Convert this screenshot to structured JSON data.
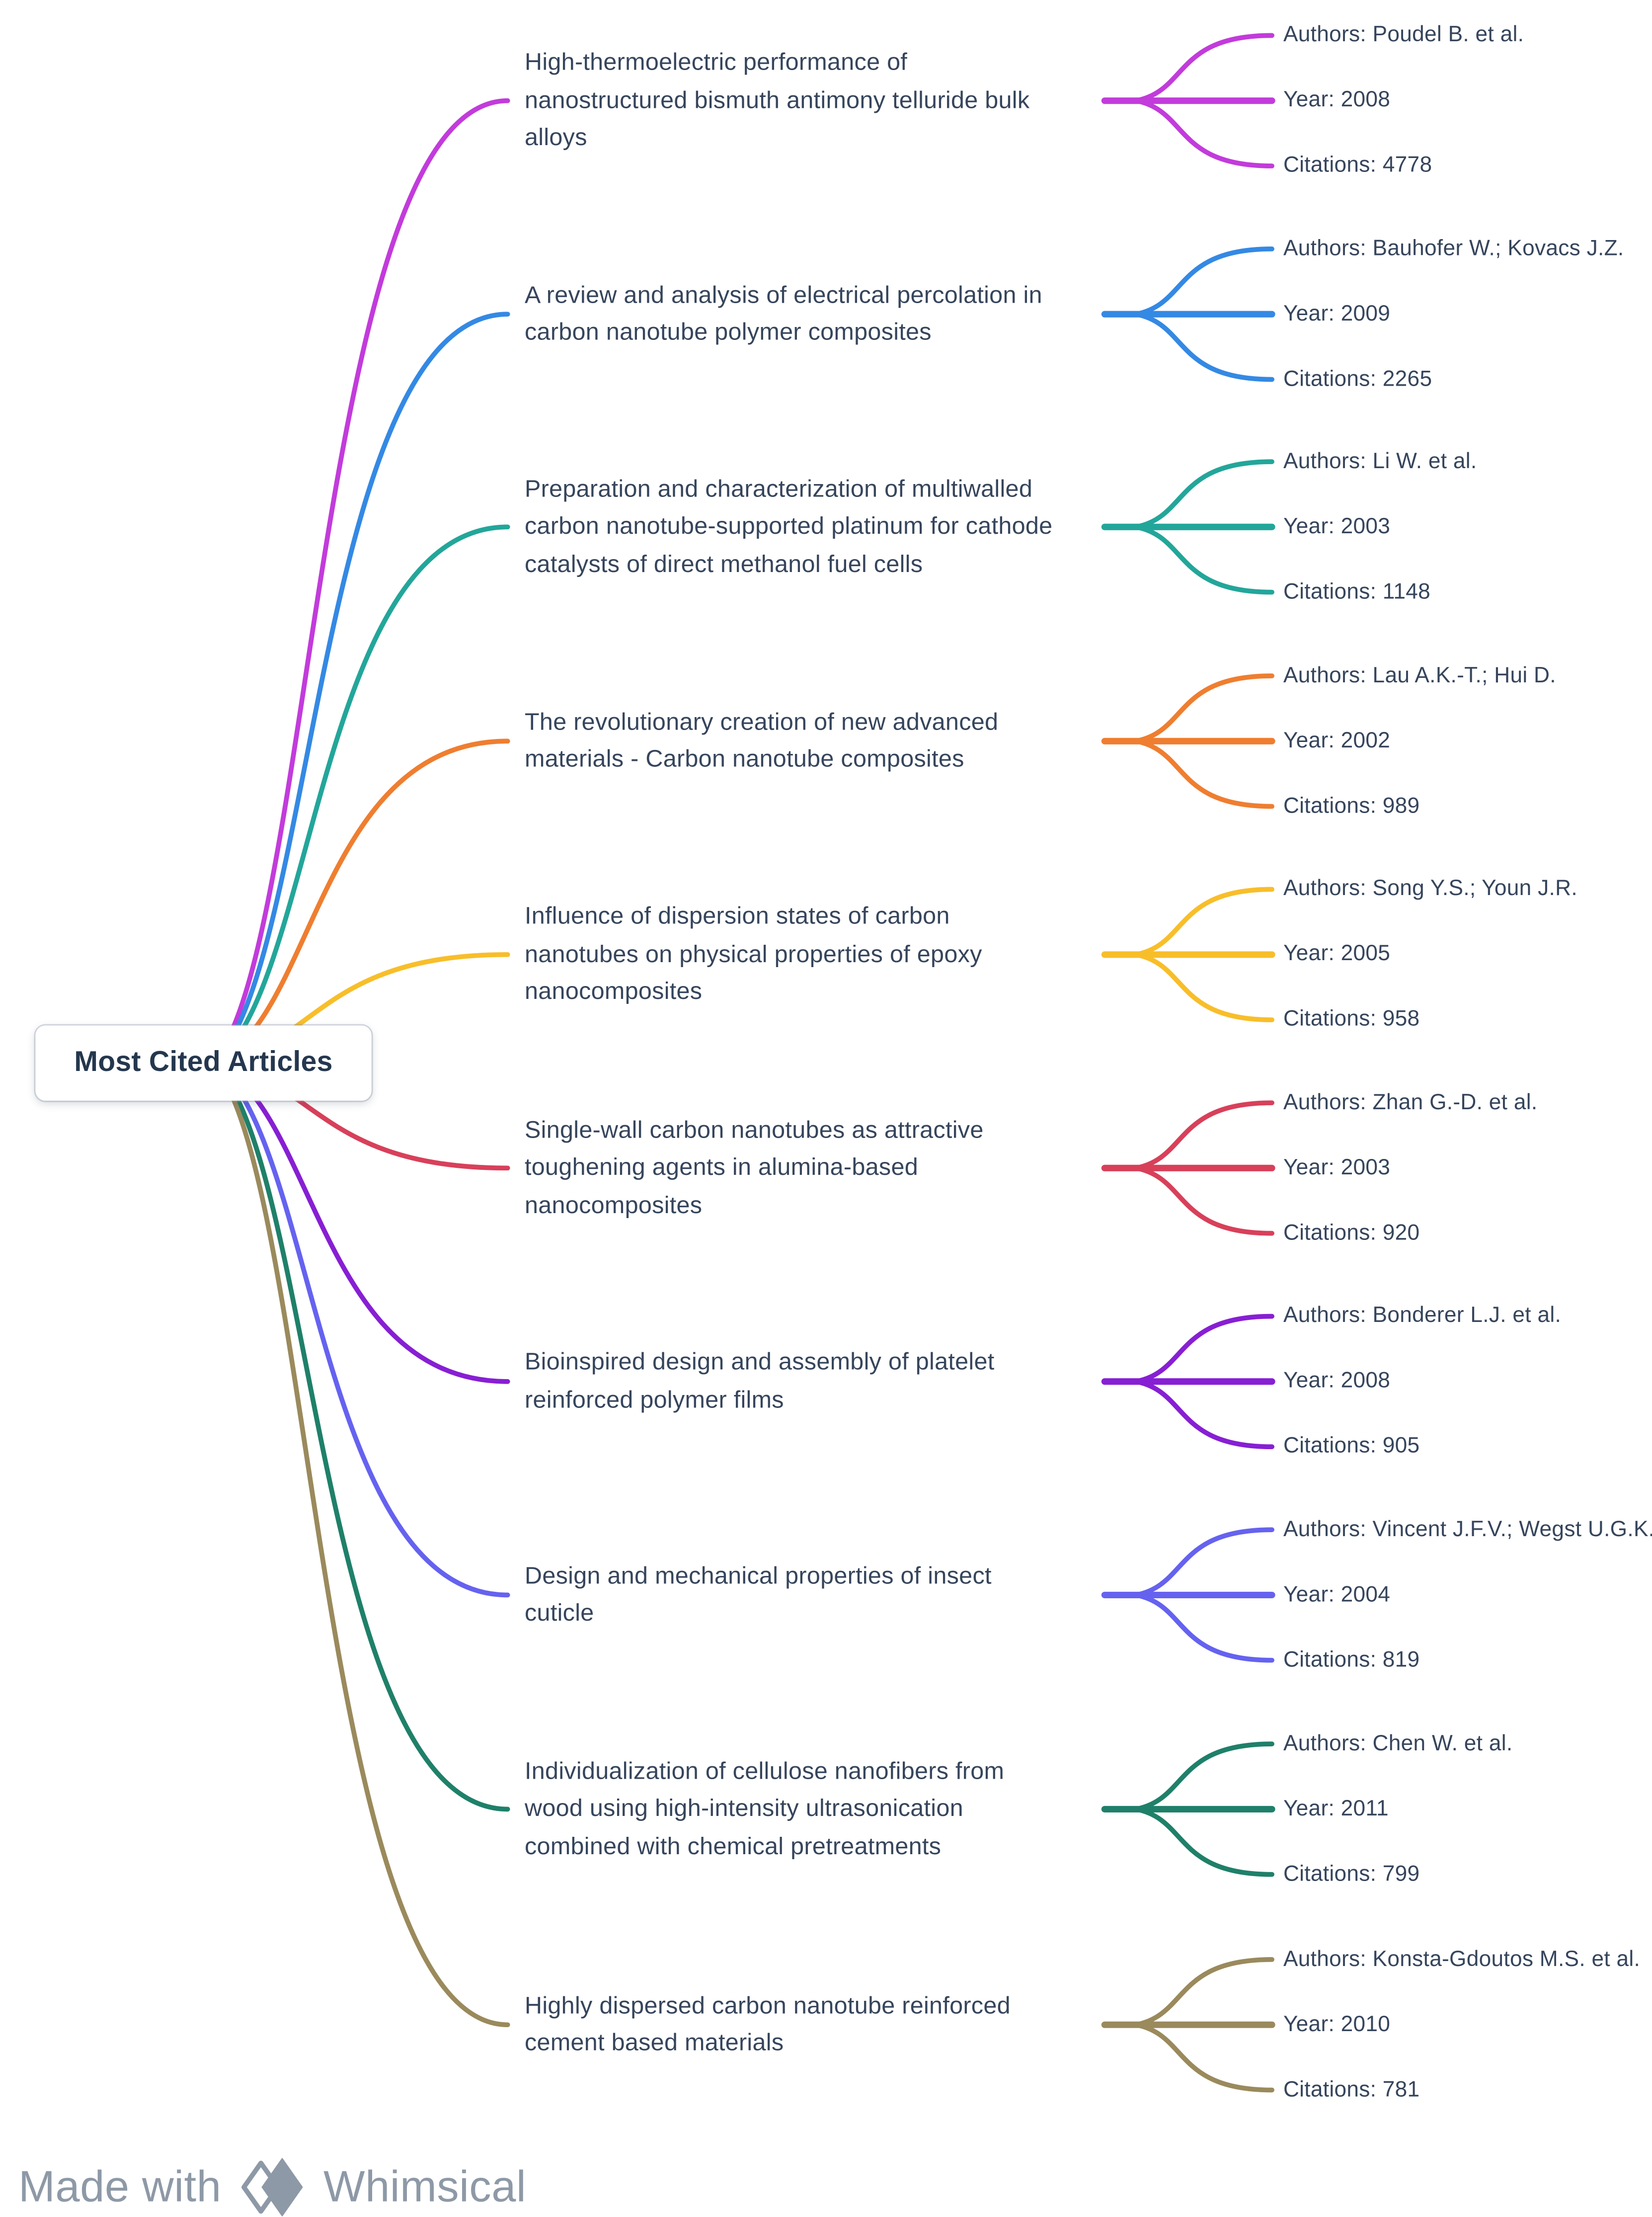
{
  "root": {
    "label": "Most Cited Articles"
  },
  "branches": [
    {
      "title": "High-thermoelectric performance of\nnanostructured bismuth antimony telluride bulk\nalloys",
      "authors": "Authors: Poudel B. et al.",
      "year": "Year: 2008",
      "citations": "Citations: 4778",
      "color": "#C23BDB"
    },
    {
      "title": "A review and analysis of electrical percolation in\ncarbon nanotube polymer composites",
      "authors": "Authors: Bauhofer W.; Kovacs J.Z.",
      "year": "Year: 2009",
      "citations": "Citations: 2265",
      "color": "#3489E4"
    },
    {
      "title": "Preparation and characterization of multiwalled\ncarbon nanotube-supported platinum for cathode\ncatalysts of direct methanol fuel cells",
      "authors": "Authors: Li W. et al.",
      "year": "Year: 2003",
      "citations": "Citations: 1148",
      "color": "#23A69A"
    },
    {
      "title": "The revolutionary creation of new advanced\nmaterials - Carbon nanotube composites",
      "authors": "Authors: Lau A.K.-T.; Hui D.",
      "year": "Year: 2002",
      "citations": "Citations: 989",
      "color": "#EF7E30"
    },
    {
      "title": "Influence of dispersion states of carbon\nnanotubes on physical properties of epoxy\nnanocomposites",
      "authors": "Authors: Song Y.S.; Youn J.R.",
      "year": "Year: 2005",
      "citations": "Citations: 958",
      "color": "#F8BE2A"
    },
    {
      "title": "Single-wall carbon nanotubes as attractive\ntoughening agents in alumina-based\nnanocomposites",
      "authors": "Authors: Zhan G.-D. et al.",
      "year": "Year: 2003",
      "citations": "Citations: 920",
      "color": "#D8405A"
    },
    {
      "title": "Bioinspired design and assembly of platelet\nreinforced polymer films",
      "authors": "Authors: Bonderer L.J. et al.",
      "year": "Year: 2008",
      "citations": "Citations: 905",
      "color": "#871FD3"
    },
    {
      "title": "Design and mechanical properties of insect\ncuticle",
      "authors": "Authors: Vincent J.F.V.; Wegst U.G.K.",
      "year": "Year: 2004",
      "citations": "Citations: 819",
      "color": "#6562F0"
    },
    {
      "title": "Individualization of cellulose nanofibers from\nwood using high-intensity ultrasonication\ncombined with chemical pretreatments",
      "authors": "Authors: Chen W. et al.",
      "year": "Year: 2011",
      "citations": "Citations: 799",
      "color": "#1F8069"
    },
    {
      "title": "Highly dispersed carbon nanotube reinforced\ncement based materials",
      "authors": "Authors: Konsta-Gdoutos M.S. et al.",
      "year": "Year: 2010",
      "citations": "Citations: 781",
      "color": "#9A8A5C"
    }
  ],
  "footer": {
    "made_with": "Made with",
    "brand": "Whimsical"
  },
  "colors": {
    "background": "#FFFFFF",
    "node_text": "#36455C",
    "root_text": "#24374E",
    "footer_gray": "#8E99A7"
  }
}
